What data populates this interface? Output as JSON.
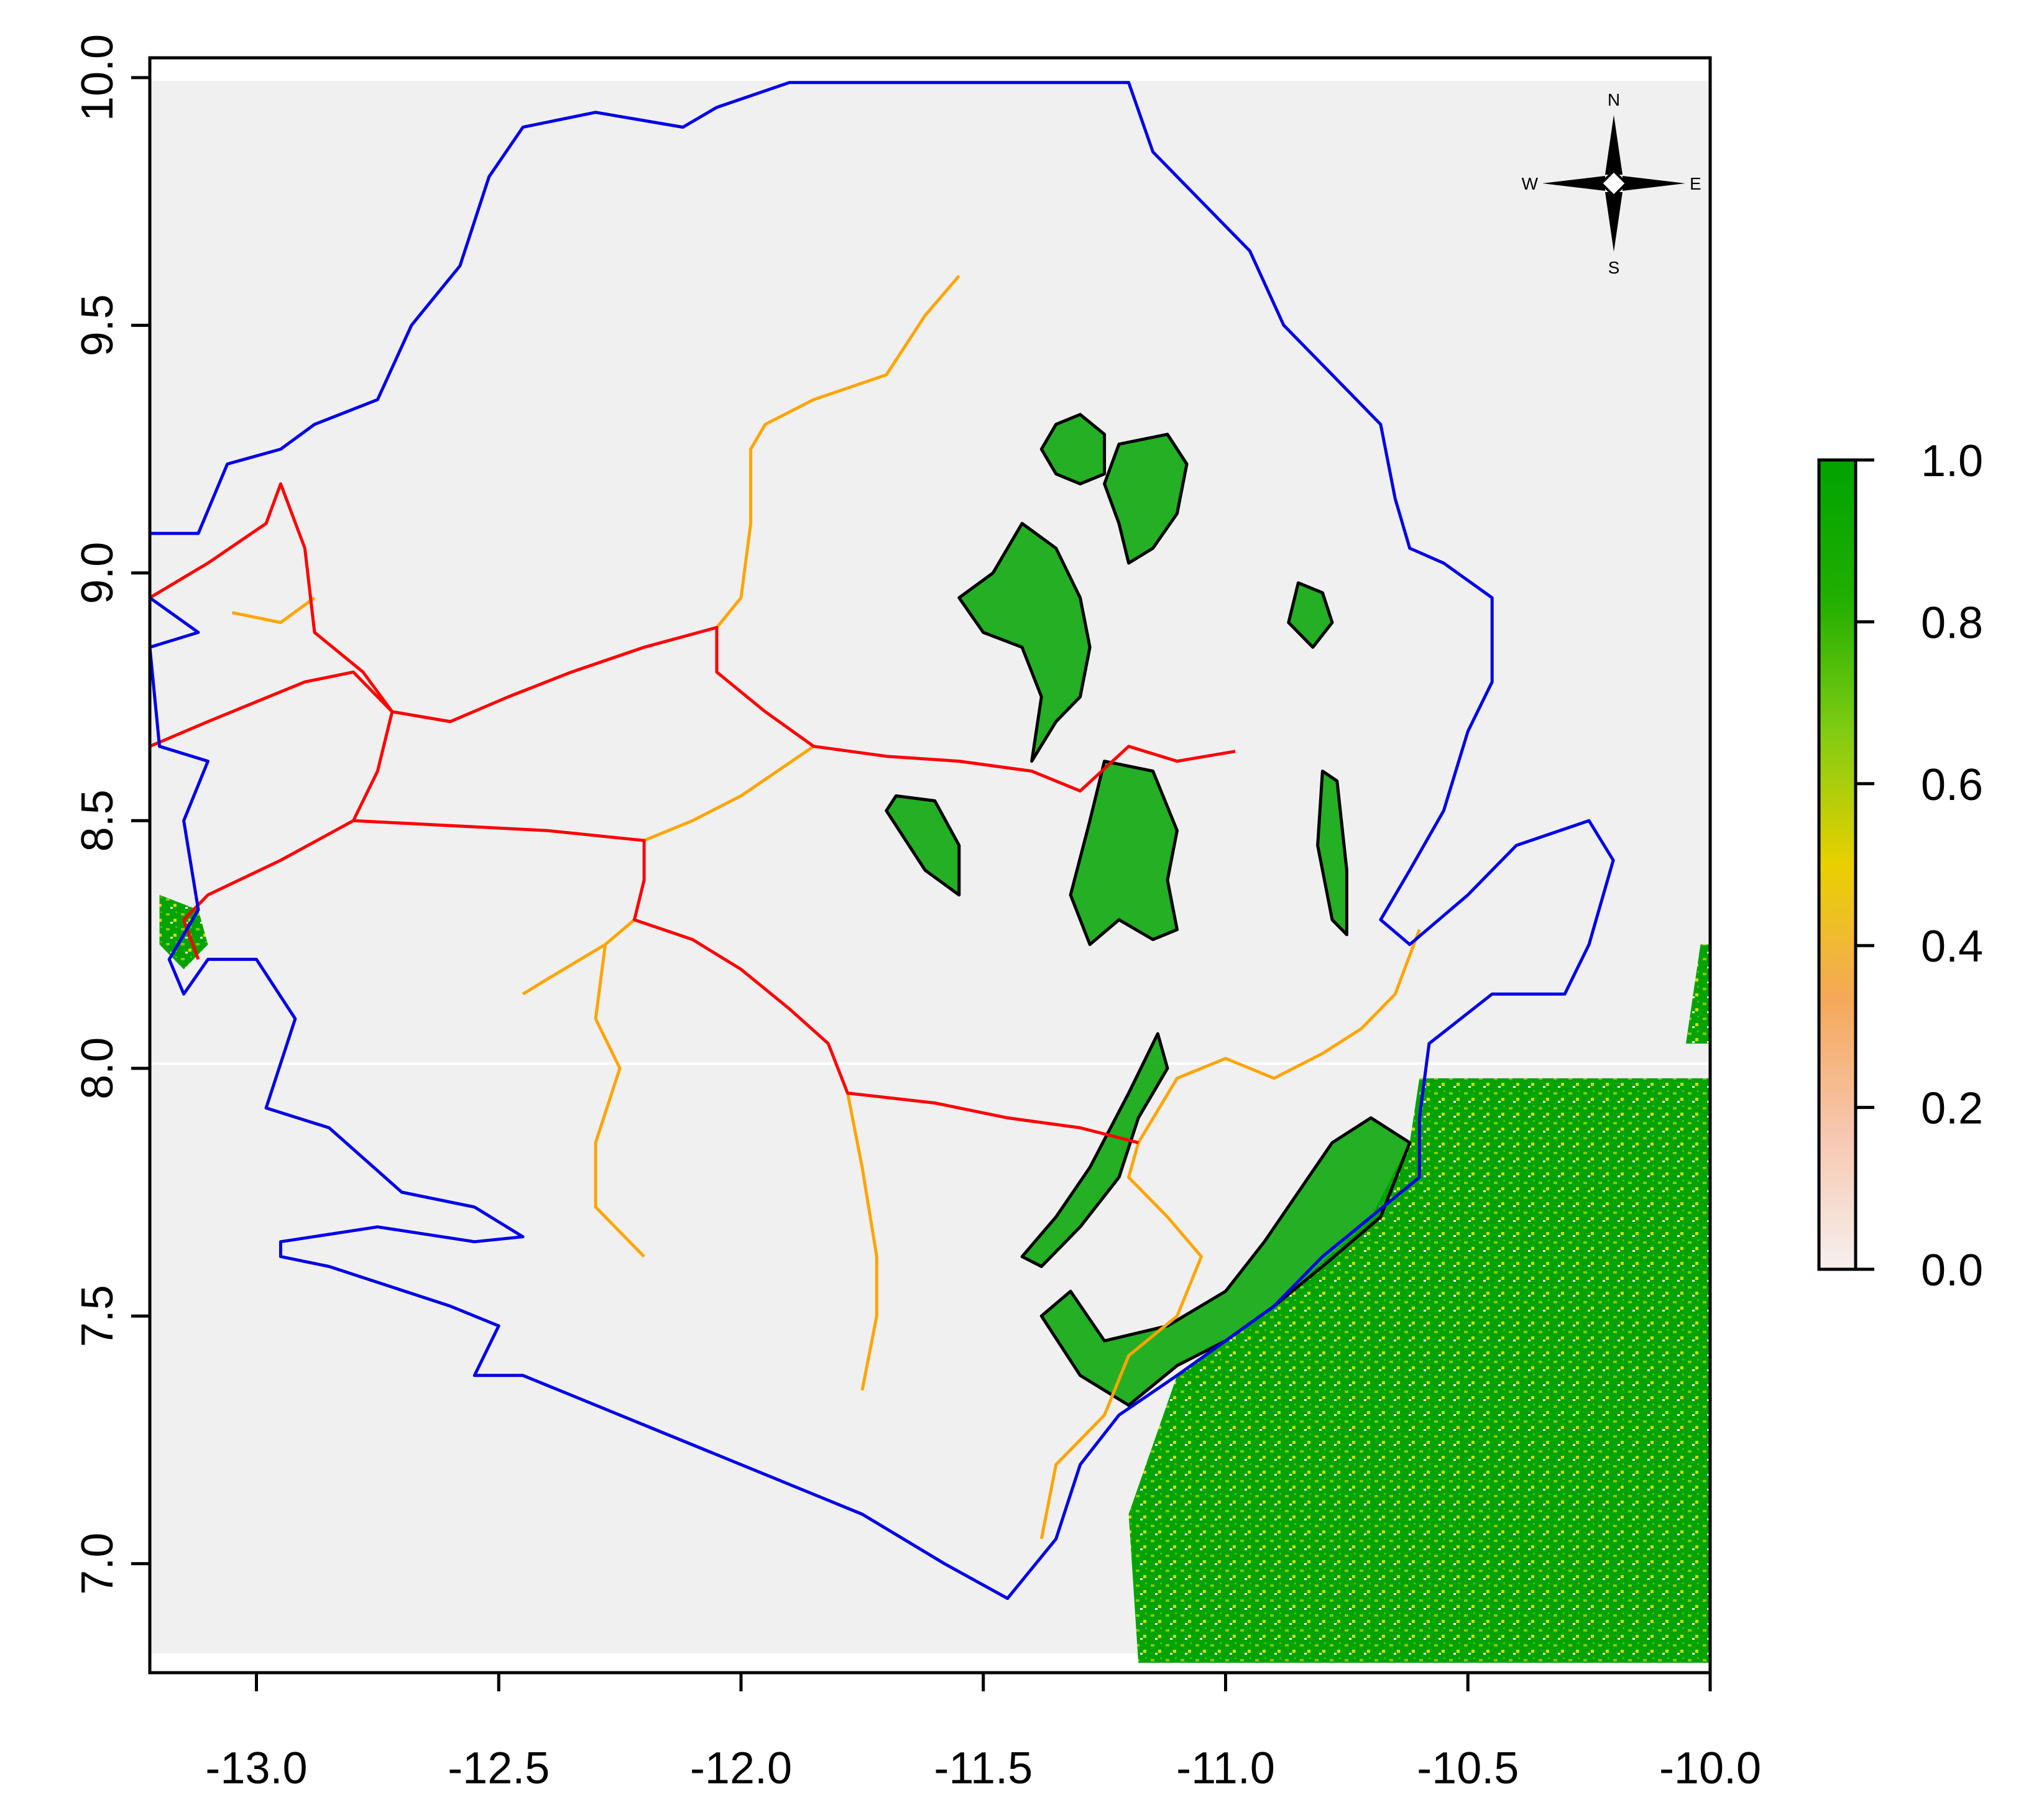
{
  "map": {
    "x_axis": {
      "min": -13.22,
      "max": -10.0,
      "ticks": [
        {
          "value": -13.0,
          "label": "-13.0"
        },
        {
          "value": -12.5,
          "label": "-12.5"
        },
        {
          "value": -12.0,
          "label": "-12.0"
        },
        {
          "value": -11.5,
          "label": "-11.5"
        },
        {
          "value": -11.0,
          "label": "-11.0"
        },
        {
          "value": -10.5,
          "label": "-10.5"
        },
        {
          "value": -10.0,
          "label": "-10.0"
        }
      ]
    },
    "y_axis": {
      "min": 6.78,
      "max": 10.04,
      "ticks": [
        {
          "value": 7.0,
          "label": "7.0"
        },
        {
          "value": 7.5,
          "label": "7.5"
        },
        {
          "value": 8.0,
          "label": "8.0"
        },
        {
          "value": 8.5,
          "label": "8.5"
        },
        {
          "value": 9.0,
          "label": "9.0"
        },
        {
          "value": 9.5,
          "label": "9.5"
        },
        {
          "value": 10.0,
          "label": "10.0"
        }
      ]
    },
    "colorbar": {
      "range": [
        0,
        1
      ],
      "ticks": [
        {
          "value": 0.0,
          "label": "0.0"
        },
        {
          "value": 0.2,
          "label": "0.2"
        },
        {
          "value": 0.4,
          "label": "0.4"
        },
        {
          "value": 0.6,
          "label": "0.6"
        },
        {
          "value": 0.8,
          "label": "0.8"
        },
        {
          "value": 1.0,
          "label": "1.0"
        }
      ],
      "colors": [
        "#f6f0ee",
        "#f7c7b0",
        "#f5a85a",
        "#e9d000",
        "#7fcc13",
        "#1fae00",
        "#00a300"
      ]
    },
    "compass": {
      "n": "N",
      "s": "S",
      "e": "E",
      "w": "W"
    },
    "colors": {
      "background": "#f0f0f0",
      "country_border": "#0000e6",
      "major_road": "#ff0000",
      "minor_road": "#ffa500",
      "forest_outline": "#000000",
      "forest_fill": "#00a300",
      "forest_light": "#7fcc13"
    },
    "border": [
      [
        -13.06,
        9.22
      ],
      [
        -12.95,
        9.25
      ],
      [
        -12.88,
        9.3
      ],
      [
        -12.75,
        9.35
      ],
      [
        -12.68,
        9.5
      ],
      [
        -12.58,
        9.62
      ],
      [
        -12.52,
        9.8
      ],
      [
        -12.45,
        9.9
      ],
      [
        -12.3,
        9.93
      ],
      [
        -12.12,
        9.9
      ],
      [
        -12.05,
        9.94
      ],
      [
        -11.9,
        9.99
      ],
      [
        -11.5,
        9.99
      ],
      [
        -11.2,
        9.99
      ],
      [
        -11.15,
        9.85
      ],
      [
        -11.05,
        9.75
      ],
      [
        -10.95,
        9.65
      ],
      [
        -10.88,
        9.5
      ],
      [
        -10.78,
        9.4
      ],
      [
        -10.68,
        9.3
      ],
      [
        -10.65,
        9.15
      ],
      [
        -10.62,
        9.05
      ],
      [
        -10.55,
        9.02
      ],
      [
        -10.45,
        8.95
      ],
      [
        -10.45,
        8.78
      ],
      [
        -10.5,
        8.68
      ],
      [
        -10.55,
        8.52
      ],
      [
        -10.62,
        8.4
      ],
      [
        -10.68,
        8.3
      ],
      [
        -10.62,
        8.25
      ],
      [
        -10.5,
        8.35
      ],
      [
        -10.4,
        8.45
      ],
      [
        -10.25,
        8.5
      ],
      [
        -10.2,
        8.42
      ],
      [
        -10.25,
        8.25
      ],
      [
        -10.3,
        8.15
      ],
      [
        -10.45,
        8.15
      ],
      [
        -10.58,
        8.05
      ],
      [
        -10.6,
        7.9
      ],
      [
        -10.6,
        7.78
      ],
      [
        -10.7,
        7.7
      ],
      [
        -10.8,
        7.62
      ],
      [
        -10.9,
        7.52
      ],
      [
        -11.0,
        7.45
      ],
      [
        -11.1,
        7.38
      ],
      [
        -11.22,
        7.3
      ],
      [
        -11.3,
        7.2
      ],
      [
        -11.35,
        7.05
      ],
      [
        -11.45,
        6.93
      ],
      [
        -11.58,
        7.0
      ],
      [
        -11.75,
        7.1
      ],
      [
        -11.95,
        7.18
      ],
      [
        -12.2,
        7.28
      ],
      [
        -12.45,
        7.38
      ],
      [
        -12.55,
        7.38
      ],
      [
        -12.5,
        7.48
      ],
      [
        -12.6,
        7.52
      ],
      [
        -12.85,
        7.6
      ],
      [
        -12.95,
        7.62
      ],
      [
        -12.95,
        7.65
      ],
      [
        -12.75,
        7.68
      ],
      [
        -12.55,
        7.65
      ],
      [
        -12.45,
        7.66
      ],
      [
        -12.55,
        7.72
      ],
      [
        -12.7,
        7.75
      ],
      [
        -12.85,
        7.88
      ],
      [
        -12.98,
        7.92
      ],
      [
        -12.92,
        8.1
      ],
      [
        -13.0,
        8.22
      ],
      [
        -13.1,
        8.22
      ],
      [
        -13.15,
        8.15
      ],
      [
        -13.18,
        8.22
      ],
      [
        -13.12,
        8.32
      ],
      [
        -13.15,
        8.5
      ],
      [
        -13.1,
        8.62
      ],
      [
        -13.2,
        8.65
      ],
      [
        -13.22,
        8.85
      ],
      [
        -13.12,
        8.88
      ],
      [
        -13.22,
        8.95
      ],
      [
        -13.22,
        9.08
      ],
      [
        -13.12,
        9.08
      ],
      [
        -13.06,
        9.22
      ]
    ],
    "major_roads": [
      [
        [
          -13.22,
          8.95
        ],
        [
          -13.1,
          9.02
        ],
        [
          -12.98,
          9.1
        ],
        [
          -12.95,
          9.18
        ],
        [
          -12.9,
          9.05
        ],
        [
          -12.88,
          8.88
        ],
        [
          -12.78,
          8.8
        ],
        [
          -12.72,
          8.72
        ],
        [
          -12.6,
          8.7
        ],
        [
          -12.48,
          8.75
        ],
        [
          -12.35,
          8.8
        ],
        [
          -12.2,
          8.85
        ],
        [
          -12.05,
          8.89
        ],
        [
          -12.05,
          8.8
        ],
        [
          -11.95,
          8.72
        ],
        [
          -11.85,
          8.65
        ],
        [
          -11.7,
          8.63
        ],
        [
          -11.55,
          8.62
        ],
        [
          -11.4,
          8.6
        ],
        [
          -11.3,
          8.56
        ],
        [
          -11.2,
          8.65
        ],
        [
          -11.1,
          8.62
        ],
        [
          -10.98,
          8.64
        ]
      ],
      [
        [
          -12.72,
          8.72
        ],
        [
          -12.75,
          8.6
        ],
        [
          -12.8,
          8.5
        ],
        [
          -12.95,
          8.42
        ],
        [
          -13.1,
          8.35
        ],
        [
          -13.15,
          8.3
        ],
        [
          -13.12,
          8.22
        ]
      ],
      [
        [
          -12.8,
          8.5
        ],
        [
          -12.6,
          8.49
        ],
        [
          -12.4,
          8.48
        ],
        [
          -12.3,
          8.47
        ],
        [
          -12.2,
          8.46
        ],
        [
          -12.2,
          8.38
        ],
        [
          -12.22,
          8.3
        ],
        [
          -12.1,
          8.26
        ],
        [
          -12.0,
          8.2
        ],
        [
          -11.9,
          8.12
        ],
        [
          -11.82,
          8.05
        ],
        [
          -11.78,
          7.95
        ],
        [
          -11.6,
          7.93
        ],
        [
          -11.45,
          7.9
        ],
        [
          -11.3,
          7.88
        ],
        [
          -11.18,
          7.85
        ]
      ],
      [
        [
          -13.22,
          8.65
        ],
        [
          -13.1,
          8.7
        ],
        [
          -12.9,
          8.78
        ],
        [
          -12.8,
          8.8
        ],
        [
          -12.72,
          8.72
        ]
      ]
    ],
    "minor_roads": [
      [
        [
          -13.05,
          8.92
        ],
        [
          -12.95,
          8.9
        ],
        [
          -12.88,
          8.95
        ]
      ],
      [
        [
          -12.05,
          8.89
        ],
        [
          -12.0,
          8.95
        ],
        [
          -11.98,
          9.1
        ],
        [
          -11.98,
          9.25
        ],
        [
          -11.95,
          9.3
        ],
        [
          -11.85,
          9.35
        ],
        [
          -11.7,
          9.4
        ],
        [
          -11.62,
          9.52
        ],
        [
          -11.55,
          9.6
        ]
      ],
      [
        [
          -11.85,
          8.65
        ],
        [
          -12.0,
          8.55
        ],
        [
          -12.1,
          8.5
        ],
        [
          -12.2,
          8.46
        ]
      ],
      [
        [
          -12.22,
          8.3
        ],
        [
          -12.28,
          8.25
        ],
        [
          -12.4,
          8.18
        ],
        [
          -12.45,
          8.15
        ]
      ],
      [
        [
          -12.28,
          8.25
        ],
        [
          -12.3,
          8.1
        ],
        [
          -12.25,
          8.0
        ],
        [
          -12.3,
          7.85
        ],
        [
          -12.3,
          7.72
        ],
        [
          -12.2,
          7.62
        ]
      ],
      [
        [
          -11.78,
          7.95
        ],
        [
          -11.75,
          7.8
        ],
        [
          -11.72,
          7.62
        ],
        [
          -11.72,
          7.5
        ],
        [
          -11.75,
          7.35
        ]
      ],
      [
        [
          -11.18,
          7.85
        ],
        [
          -11.2,
          7.78
        ],
        [
          -11.12,
          7.7
        ],
        [
          -11.05,
          7.62
        ],
        [
          -11.1,
          7.5
        ],
        [
          -11.2,
          7.42
        ],
        [
          -11.25,
          7.3
        ],
        [
          -11.35,
          7.2
        ],
        [
          -11.38,
          7.05
        ]
      ],
      [
        [
          -11.18,
          7.85
        ],
        [
          -11.1,
          7.98
        ],
        [
          -11.0,
          8.02
        ],
        [
          -10.9,
          7.98
        ],
        [
          -10.8,
          8.03
        ],
        [
          -10.72,
          8.08
        ],
        [
          -10.65,
          8.15
        ],
        [
          -10.6,
          8.28
        ]
      ]
    ],
    "forest_reserves": [
      [
        [
          -11.35,
          9.3
        ],
        [
          -11.3,
          9.32
        ],
        [
          -11.25,
          9.28
        ],
        [
          -11.25,
          9.2
        ],
        [
          -11.3,
          9.18
        ],
        [
          -11.35,
          9.2
        ],
        [
          -11.38,
          9.25
        ]
      ],
      [
        [
          -11.22,
          9.26
        ],
        [
          -11.12,
          9.28
        ],
        [
          -11.08,
          9.22
        ],
        [
          -11.1,
          9.12
        ],
        [
          -11.15,
          9.05
        ],
        [
          -11.2,
          9.02
        ],
        [
          -11.22,
          9.1
        ],
        [
          -11.25,
          9.18
        ]
      ],
      [
        [
          -11.42,
          9.1
        ],
        [
          -11.35,
          9.05
        ],
        [
          -11.3,
          8.95
        ],
        [
          -11.28,
          8.85
        ],
        [
          -11.3,
          8.75
        ],
        [
          -11.35,
          8.7
        ],
        [
          -11.4,
          8.62
        ],
        [
          -11.38,
          8.75
        ],
        [
          -11.42,
          8.85
        ],
        [
          -11.5,
          8.88
        ],
        [
          -11.55,
          8.95
        ],
        [
          -11.48,
          9.0
        ],
        [
          -11.42,
          9.1
        ]
      ],
      [
        [
          -10.85,
          8.98
        ],
        [
          -10.8,
          8.96
        ],
        [
          -10.78,
          8.9
        ],
        [
          -10.82,
          8.85
        ],
        [
          -10.87,
          8.9
        ]
      ],
      [
        [
          -11.68,
          8.55
        ],
        [
          -11.6,
          8.54
        ],
        [
          -11.55,
          8.45
        ],
        [
          -11.55,
          8.35
        ],
        [
          -11.62,
          8.4
        ],
        [
          -11.7,
          8.52
        ]
      ],
      [
        [
          -11.25,
          8.62
        ],
        [
          -11.15,
          8.6
        ],
        [
          -11.1,
          8.48
        ],
        [
          -11.12,
          8.38
        ],
        [
          -11.1,
          8.28
        ],
        [
          -11.15,
          8.26
        ],
        [
          -11.22,
          8.3
        ],
        [
          -11.28,
          8.25
        ],
        [
          -11.32,
          8.35
        ],
        [
          -11.28,
          8.5
        ]
      ],
      [
        [
          -10.8,
          8.6
        ],
        [
          -10.77,
          8.58
        ],
        [
          -10.75,
          8.4
        ],
        [
          -10.75,
          8.27
        ],
        [
          -10.78,
          8.3
        ],
        [
          -10.81,
          8.45
        ]
      ],
      [
        [
          -11.14,
          8.07
        ],
        [
          -11.2,
          7.95
        ],
        [
          -11.28,
          7.8
        ],
        [
          -11.35,
          7.7
        ],
        [
          -11.42,
          7.62
        ],
        [
          -11.38,
          7.6
        ],
        [
          -11.3,
          7.68
        ],
        [
          -11.22,
          7.78
        ],
        [
          -11.18,
          7.9
        ],
        [
          -11.12,
          8.0
        ]
      ],
      [
        [
          -10.7,
          7.9
        ],
        [
          -10.62,
          7.85
        ],
        [
          -10.68,
          7.7
        ],
        [
          -10.8,
          7.6
        ],
        [
          -10.9,
          7.52
        ],
        [
          -11.0,
          7.45
        ],
        [
          -11.1,
          7.4
        ],
        [
          -11.2,
          7.32
        ],
        [
          -11.3,
          7.38
        ],
        [
          -11.38,
          7.5
        ],
        [
          -11.32,
          7.55
        ],
        [
          -11.25,
          7.45
        ],
        [
          -11.12,
          7.48
        ],
        [
          -11.0,
          7.55
        ],
        [
          -10.92,
          7.65
        ],
        [
          -10.85,
          7.75
        ],
        [
          -10.78,
          7.85
        ]
      ]
    ],
    "forest_patches": [
      [
        [
          -10.6,
          7.98
        ],
        [
          -10.0,
          7.98
        ],
        [
          -10.0,
          6.8
        ],
        [
          -11.18,
          6.8
        ],
        [
          -11.2,
          7.1
        ],
        [
          -11.1,
          7.38
        ],
        [
          -10.9,
          7.52
        ],
        [
          -10.7,
          7.7
        ],
        [
          -10.62,
          7.85
        ]
      ],
      [
        [
          -10.02,
          8.25
        ],
        [
          -10.0,
          8.25
        ],
        [
          -10.0,
          8.05
        ],
        [
          -10.05,
          8.05
        ]
      ],
      [
        [
          -13.2,
          8.35
        ],
        [
          -13.12,
          8.32
        ],
        [
          -13.1,
          8.25
        ],
        [
          -13.15,
          8.2
        ],
        [
          -13.2,
          8.25
        ]
      ]
    ]
  }
}
